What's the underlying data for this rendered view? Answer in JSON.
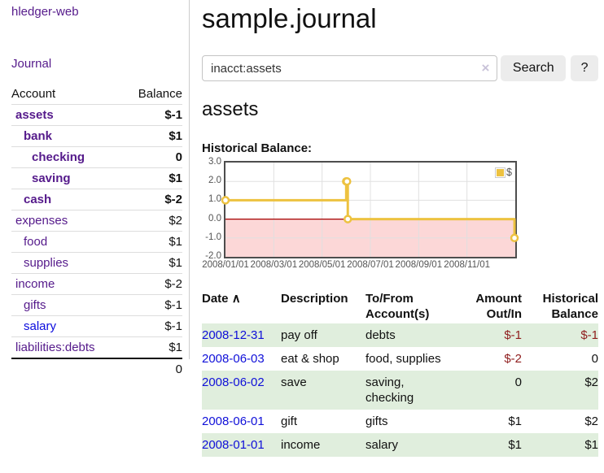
{
  "app": {
    "brand": "hledger-web"
  },
  "colors": {
    "link_purple": "#551a8b",
    "link_blue": "#0b0bdd",
    "negative_strong": "#8f1d1d",
    "negative_light": "#c1807f",
    "row_green": "#e0eedd",
    "chart_line": "#edc240",
    "chart_negative_bg": "#fcd7d7",
    "chart_zero_line": "#a40000"
  },
  "sidebar": {
    "journal_label": "Journal",
    "accounts": {
      "headers": [
        "Account",
        "Balance"
      ],
      "rows": [
        {
          "name": "assets",
          "balance": "$-1"
        },
        {
          "name": "bank",
          "balance": "$1"
        },
        {
          "name": "checking",
          "balance": "0"
        },
        {
          "name": "saving",
          "balance": "$1"
        },
        {
          "name": "cash",
          "balance": "$-2"
        },
        {
          "name": "expenses",
          "balance": "$2"
        },
        {
          "name": "food",
          "balance": "$1"
        },
        {
          "name": "supplies",
          "balance": "$1"
        },
        {
          "name": "income",
          "balance": "$-2"
        },
        {
          "name": "gifts",
          "balance": "$-1"
        },
        {
          "name": "salary",
          "balance": "$-1"
        },
        {
          "name": "liabilities:debts",
          "balance": "$1"
        }
      ],
      "total": "0"
    }
  },
  "main": {
    "title": "sample.journal",
    "search": {
      "value": "inacct:assets",
      "clear_icon": "×",
      "button_label": "Search",
      "help_label": "?"
    },
    "account_heading": "assets",
    "chart_heading": "Historical Balance:",
    "register": {
      "headers": {
        "date": "Date",
        "sort_indicator": "∧",
        "description": "Description",
        "accounts": "To/From Account(s)",
        "amount": "Amount Out/In",
        "balance": "Historical Balance"
      },
      "rows": [
        {
          "date": "2008-12-31",
          "description": "pay off",
          "accounts": "debts",
          "amount": "$-1",
          "balance": "$-1"
        },
        {
          "date": "2008-06-03",
          "description": "eat & shop",
          "accounts": "food, supplies",
          "amount": "$-2",
          "balance": "0"
        },
        {
          "date": "2008-06-02",
          "description": "save",
          "accounts": "saving, checking",
          "amount": "0",
          "balance": "$2"
        },
        {
          "date": "2008-06-01",
          "description": "gift",
          "accounts": "gifts",
          "amount": "$1",
          "balance": "$2"
        },
        {
          "date": "2008-01-01",
          "description": "income",
          "accounts": "salary",
          "amount": "$1",
          "balance": "$1"
        }
      ]
    }
  },
  "chart_data": {
    "type": "line",
    "title": "Historical Balance",
    "style": "steps",
    "series": [
      {
        "name": "$",
        "color": "#edc240",
        "points": [
          {
            "date": "2008-01-01",
            "value": 1
          },
          {
            "date": "2008-06-01",
            "value": 2
          },
          {
            "date": "2008-06-02",
            "value": 2
          },
          {
            "date": "2008-06-03",
            "value": 0
          },
          {
            "date": "2008-12-31",
            "value": -1
          }
        ]
      }
    ],
    "x_ticks": [
      "2008/01/01",
      "2008/03/01",
      "2008/05/01",
      "2008/07/01",
      "2008/09/01",
      "2008/11/01"
    ],
    "y_ticks": [
      "3.0",
      "2.0",
      "1.0",
      "0.0",
      "-1.0",
      "-2.0"
    ],
    "ylim": [
      -2,
      3
    ],
    "xlim": [
      "2008-01-01",
      "2009-01-01"
    ],
    "grid": true,
    "legend_position": "top-right",
    "negative_region_color": "#fcd7d7",
    "zero_line_color": "#a40000",
    "grid_color": "#e0e0e0"
  }
}
